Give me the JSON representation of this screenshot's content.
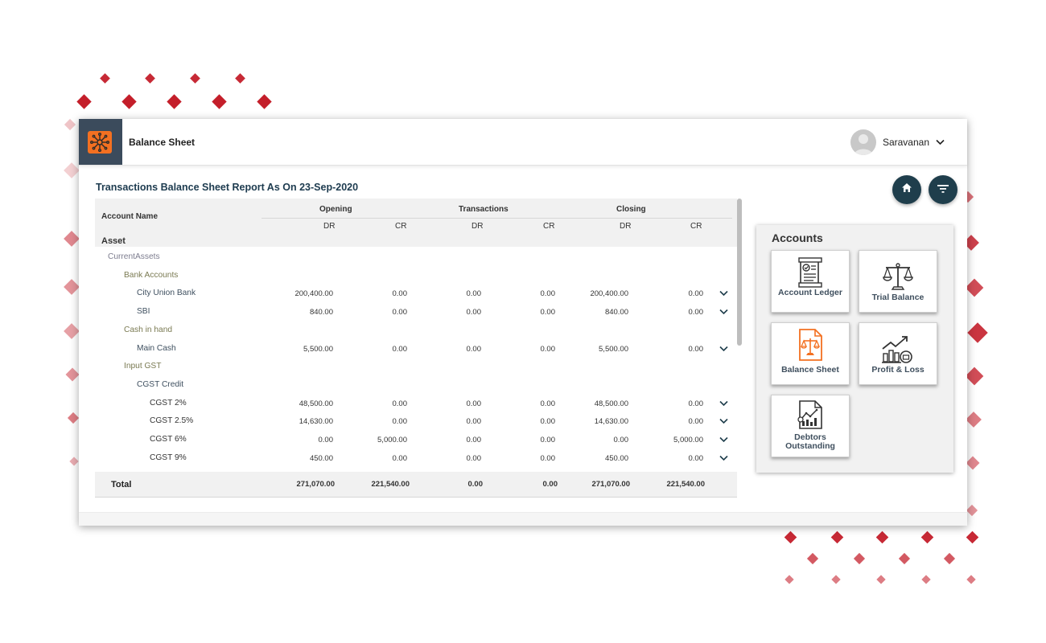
{
  "app": {
    "title": "Balance Sheet",
    "user_name": "Saravanan"
  },
  "report": {
    "title": "Transactions Balance Sheet Report As On 23-Sep-2020"
  },
  "table": {
    "col_account": "Account Name",
    "groups": [
      "Opening",
      "Transactions",
      "Closing"
    ],
    "sub_headers": [
      "DR",
      "CR",
      "DR",
      "CR",
      "DR",
      "CR"
    ],
    "section": "Asset",
    "rows": [
      {
        "name": "CurrentAssets",
        "level": 1,
        "values": []
      },
      {
        "name": "Bank Accounts",
        "level": 2,
        "values": []
      },
      {
        "name": "City Union Bank",
        "level": 3,
        "values": [
          "200,400.00",
          "0.00",
          "0.00",
          "0.00",
          "200,400.00",
          "0.00"
        ]
      },
      {
        "name": "SBI",
        "level": 3,
        "values": [
          "840.00",
          "0.00",
          "0.00",
          "0.00",
          "840.00",
          "0.00"
        ]
      },
      {
        "name": "Cash in hand",
        "level": 2,
        "values": []
      },
      {
        "name": "Main Cash",
        "level": 3,
        "values": [
          "5,500.00",
          "0.00",
          "0.00",
          "0.00",
          "5,500.00",
          "0.00"
        ]
      },
      {
        "name": "Input GST",
        "level": 2,
        "values": []
      },
      {
        "name": "CGST Credit",
        "level": 3,
        "values": []
      },
      {
        "name": "CGST 2%",
        "level": 4,
        "values": [
          "48,500.00",
          "0.00",
          "0.00",
          "0.00",
          "48,500.00",
          "0.00"
        ]
      },
      {
        "name": "CGST 2.5%",
        "level": 4,
        "values": [
          "14,630.00",
          "0.00",
          "0.00",
          "0.00",
          "14,630.00",
          "0.00"
        ]
      },
      {
        "name": "CGST 6%",
        "level": 4,
        "values": [
          "0.00",
          "5,000.00",
          "0.00",
          "0.00",
          "0.00",
          "5,000.00"
        ]
      },
      {
        "name": "CGST 9%",
        "level": 4,
        "values": [
          "450.00",
          "0.00",
          "0.00",
          "0.00",
          "450.00",
          "0.00"
        ]
      }
    ],
    "total": {
      "label": "Total",
      "values": [
        "271,070.00",
        "221,540.00",
        "0.00",
        "0.00",
        "271,070.00",
        "221,540.00"
      ]
    }
  },
  "accounts_panel": {
    "title": "Accounts",
    "tiles": [
      {
        "label": "Account Ledger",
        "icon": "ledger-document-icon"
      },
      {
        "label": "Trial Balance",
        "icon": "scale-icon"
      },
      {
        "label": "Balance Sheet",
        "icon": "balance-sheet-icon"
      },
      {
        "label": "Profit & Loss",
        "icon": "profit-loss-chart-icon"
      },
      {
        "label": "Debtors Outstanding",
        "icon": "debtors-report-icon"
      }
    ]
  },
  "colors": {
    "brand_orange": "#f37021",
    "nav_dark": "#1f3e4c",
    "logo_bg": "#3b4b5c",
    "decor_red": "#c1121f"
  },
  "buttons": {
    "home_icon": "home-icon",
    "filter_icon": "filter-icon"
  }
}
